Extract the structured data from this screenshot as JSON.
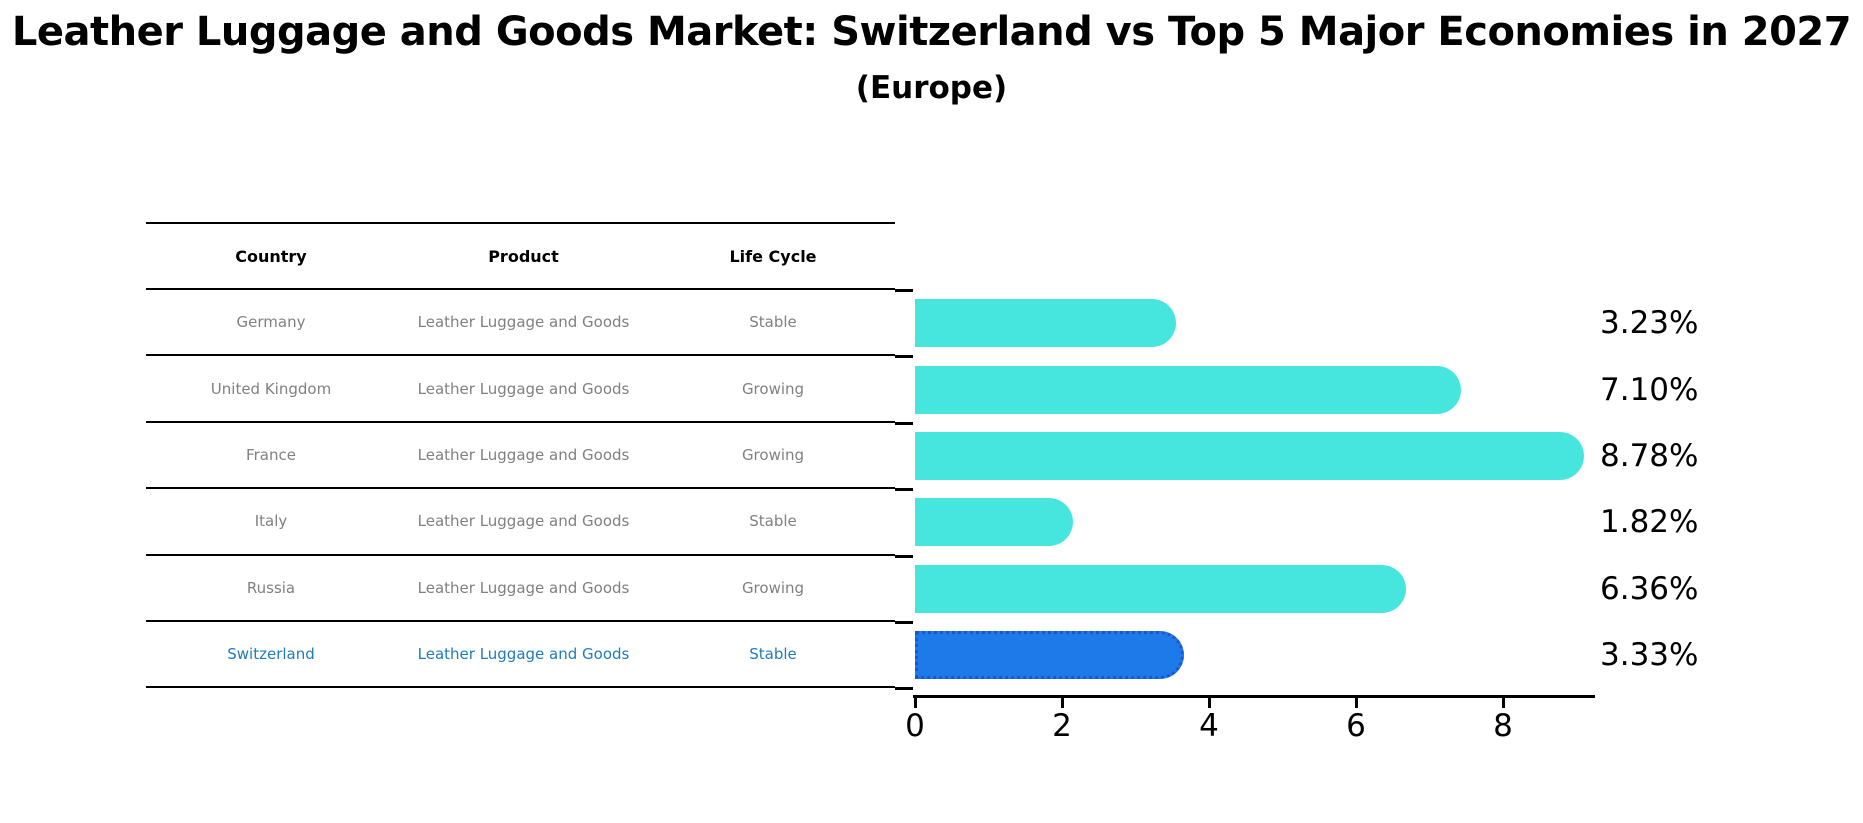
{
  "header": {
    "title": "Leather Luggage and Goods Market: Switzerland vs Top 5 Major Economies in 2027",
    "subtitle": "(Europe)"
  },
  "table": {
    "columns": [
      "Country",
      "Product",
      "Life Cycle"
    ],
    "rows": [
      {
        "country": "Germany",
        "product": "Leather Luggage and Goods",
        "life_cycle": "Stable",
        "highlight": false
      },
      {
        "country": "United Kingdom",
        "product": "Leather Luggage and Goods",
        "life_cycle": "Growing",
        "highlight": false
      },
      {
        "country": "France",
        "product": "Leather Luggage and Goods",
        "life_cycle": "Growing",
        "highlight": false
      },
      {
        "country": "Italy",
        "product": "Leather Luggage and Goods",
        "life_cycle": "Stable",
        "highlight": false
      },
      {
        "country": "Russia",
        "product": "Leather Luggage and Goods",
        "life_cycle": "Growing",
        "highlight": false
      },
      {
        "country": "Switzerland",
        "product": "Leather Luggage and Goods",
        "life_cycle": "Stable",
        "highlight": true
      }
    ]
  },
  "chart_data": {
    "type": "bar",
    "orientation": "horizontal",
    "title": "Leather Luggage and Goods Market: Switzerland vs Top 5 Major Economies in 2027",
    "subtitle": "(Europe)",
    "categories": [
      "Germany",
      "United Kingdom",
      "France",
      "Italy",
      "Russia",
      "Switzerland"
    ],
    "values": [
      3.23,
      7.1,
      8.78,
      1.82,
      6.36,
      3.33
    ],
    "labels": [
      "3.23%",
      "7.10%",
      "8.78%",
      "1.82%",
      "6.36%",
      "3.33%"
    ],
    "xlabel": "",
    "ylabel": "",
    "xlim": [
      0,
      9.25
    ],
    "x_ticks": [
      "0",
      "2",
      "4",
      "6",
      "8"
    ],
    "grid": false,
    "legend": false,
    "bar_color": "#46E6DF",
    "highlight_index": 5,
    "highlight_color": "#1E7AE8",
    "highlight_border_color": "#1C55D4",
    "highlight_text_color": "#1f7bbd"
  }
}
